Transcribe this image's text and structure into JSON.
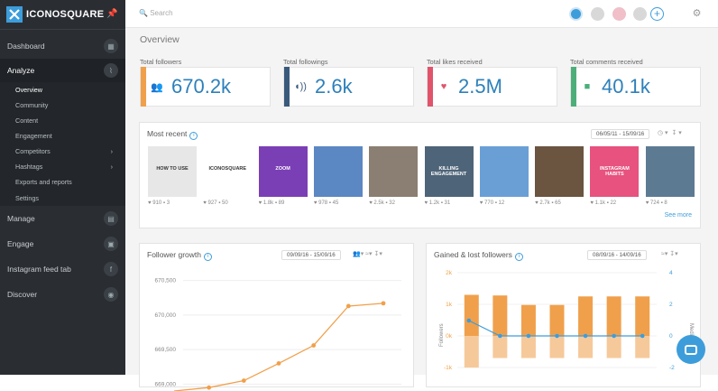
{
  "brand": {
    "name": "ICONOSQUARE"
  },
  "nav": [
    {
      "label": "Dashboard",
      "icon": "grid-icon"
    },
    {
      "label": "Analyze",
      "icon": "trend-icon"
    },
    {
      "label": "Manage",
      "icon": "calendar-icon"
    },
    {
      "label": "Engage",
      "icon": "chat-icon"
    },
    {
      "label": "Instagram feed tab",
      "icon": "facebook-icon"
    },
    {
      "label": "Discover",
      "icon": "compass-icon"
    }
  ],
  "analyze_sub": [
    {
      "label": "Overview",
      "arrow": false
    },
    {
      "label": "Community",
      "arrow": false
    },
    {
      "label": "Content",
      "arrow": false
    },
    {
      "label": "Engagement",
      "arrow": false
    },
    {
      "label": "Competitors",
      "arrow": true
    },
    {
      "label": "Hashtags",
      "arrow": true
    },
    {
      "label": "Exports and reports",
      "arrow": false
    },
    {
      "label": "Settings",
      "arrow": false
    }
  ],
  "search": {
    "placeholder": "Search"
  },
  "page": {
    "title": "Overview"
  },
  "stats": [
    {
      "label": "Total followers",
      "value": "670.2k",
      "color": "#f0a04b",
      "icon": "users-icon"
    },
    {
      "label": "Total followings",
      "value": "2.6k",
      "color": "#3a5a7c",
      "icon": "user-follow-icon"
    },
    {
      "label": "Total likes received",
      "value": "2.5M",
      "color": "#e0546b",
      "icon": "heart-icon"
    },
    {
      "label": "Total comments received",
      "value": "40.1k",
      "color": "#4caf79",
      "icon": "comment-icon"
    }
  ],
  "recent": {
    "title": "Most recent",
    "date": "06/05/11 - 15/09/16",
    "see_more": "See more",
    "posts": [
      {
        "likes": "910",
        "comments": "3",
        "bg": "#e7e7e7",
        "caption": "HOW TO USE"
      },
      {
        "likes": "927",
        "comments": "50",
        "bg": "#ffffff",
        "caption": "ICONOSQUARE"
      },
      {
        "likes": "1.8k",
        "comments": "89",
        "bg": "#7b3fb5",
        "caption": "ZOOM"
      },
      {
        "likes": "978",
        "comments": "45",
        "bg": "#5b88c2",
        "caption": ""
      },
      {
        "likes": "2.5k",
        "comments": "32",
        "bg": "#8a7f72",
        "caption": ""
      },
      {
        "likes": "1.2k",
        "comments": "31",
        "bg": "#4e6478",
        "caption": "KILLING ENGAGEMENT"
      },
      {
        "likes": "770",
        "comments": "12",
        "bg": "#6a9fd6",
        "caption": ""
      },
      {
        "likes": "2.7k",
        "comments": "65",
        "bg": "#6b5440",
        "caption": ""
      },
      {
        "likes": "1.1k",
        "comments": "22",
        "bg": "#e7527e",
        "caption": "INSTAGRAM HABITS"
      },
      {
        "likes": "724",
        "comments": "8",
        "bg": "#5d7a93",
        "caption": ""
      }
    ]
  },
  "follower_growth": {
    "title": "Follower growth",
    "date": "09/09/16 - 15/09/16",
    "chart_data": {
      "type": "line",
      "y_ticks": [
        "670,500",
        "670,000",
        "669,500",
        "669,000"
      ],
      "ylim": [
        668900,
        670600
      ],
      "series": [
        {
          "values": [
            668850,
            668950,
            669050,
            669300,
            669560,
            670130,
            670170
          ]
        }
      ]
    }
  },
  "gained_lost": {
    "title": "Gained & lost followers",
    "date": "08/09/16 - 14/09/16",
    "left_label": "Followers",
    "right_label": "Media",
    "chart_data": {
      "type": "bar",
      "left_ticks": [
        "2k",
        "1k",
        "0k",
        "-1k"
      ],
      "right_ticks": [
        "4",
        "2",
        "0",
        "-2"
      ],
      "series": [
        {
          "values": [
            1300,
            1280,
            980,
            980,
            1250,
            1250,
            1250
          ]
        },
        {
          "values": [
            -1000,
            -700,
            -700,
            -700,
            -700,
            -700,
            -700
          ]
        }
      ],
      "media_values": [
        1,
        0,
        0,
        0,
        0,
        0,
        0
      ]
    }
  }
}
